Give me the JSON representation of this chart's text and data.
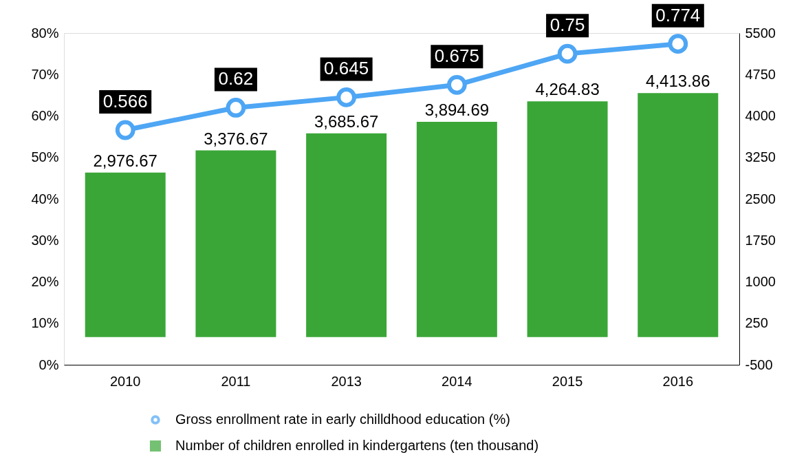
{
  "chart_data": {
    "type": "bar",
    "categories": [
      "2010",
      "2011",
      "2013",
      "2014",
      "2015",
      "2016"
    ],
    "ylim": [
      0,
      0.8
    ],
    "yticks": [
      {
        "value": 0,
        "label": "0%"
      },
      {
        "value": 0.1,
        "label": "10%"
      },
      {
        "value": 0.2,
        "label": "20%"
      },
      {
        "value": 0.3,
        "label": "30%"
      },
      {
        "value": 0.4,
        "label": "40%"
      },
      {
        "value": 0.5,
        "label": "50%"
      },
      {
        "value": 0.6,
        "label": "60%"
      },
      {
        "value": 0.7,
        "label": "70%"
      },
      {
        "value": 0.8,
        "label": "80%"
      }
    ],
    "y2lim": [
      -500,
      5500
    ],
    "y2ticks": [
      -500,
      250,
      1000,
      1750,
      2500,
      3250,
      4000,
      4750,
      5500
    ],
    "series": [
      {
        "name": "Gross enrollment rate in early chilldhood education (%)",
        "type": "line",
        "color": "#4ea6f4",
        "values": [
          0.566,
          0.62,
          0.645,
          0.675,
          0.75,
          0.774
        ],
        "value_labels": [
          "0.566",
          "0.62",
          "0.645",
          "0.675",
          "0.75",
          "0.774"
        ]
      },
      {
        "name": "Number of children enrolled in kindergartens (ten thousand)",
        "axis": "y2",
        "color": "#3aa637",
        "values": [
          2976.67,
          3376.67,
          3685.67,
          3894.69,
          4264.83,
          4413.86
        ],
        "value_labels": [
          "2,976.67",
          "3,376.67",
          "3,685.67",
          "3,894.69",
          "4,264.83",
          "4,413.86"
        ]
      }
    ],
    "marker": "circle",
    "grid": false,
    "legend": "bottom"
  }
}
